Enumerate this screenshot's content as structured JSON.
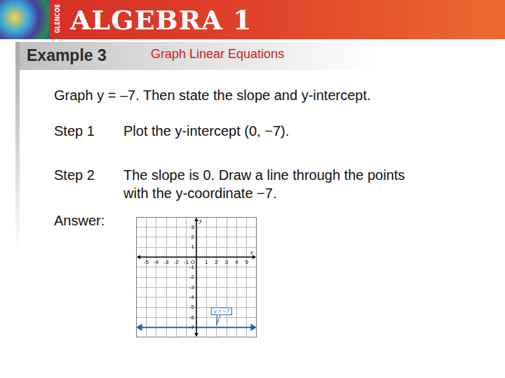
{
  "header": {
    "title": "ALGEBRA 1",
    "publisher": "GLENCOE"
  },
  "example": {
    "label": "Example 3",
    "topic": "Graph Linear Equations"
  },
  "problem": "Graph y = –7. Then state the slope and y-intercept.",
  "steps": [
    {
      "label": "Step 1",
      "lines": [
        "Plot the y-intercept (0, −7)."
      ]
    },
    {
      "label": "Step 2",
      "lines": [
        "The slope is 0. Draw a line through the points",
        "with the y-coordinate −7."
      ]
    }
  ],
  "answer_label": "Answer:",
  "chart_data": {
    "type": "line",
    "grid": true,
    "x_label": "x",
    "y_label": "y",
    "xlim": [
      -6,
      6
    ],
    "ylim": [
      -8,
      4
    ],
    "xticks": [
      -5,
      -4,
      -3,
      -2,
      -1,
      {
        "value": 0,
        "label": "O"
      },
      1,
      2,
      3,
      4,
      5
    ],
    "yticks": [
      -7,
      -6,
      -5,
      -4,
      -3,
      -2,
      -1,
      1,
      2,
      3
    ],
    "x": [
      -5.6,
      5.6
    ],
    "values": [
      -7,
      -7
    ],
    "color": "#2466b0",
    "marker": "arrow",
    "annotations": [
      {
        "text": "y = −7",
        "x": 2.5,
        "y": -5.4
      }
    ]
  }
}
